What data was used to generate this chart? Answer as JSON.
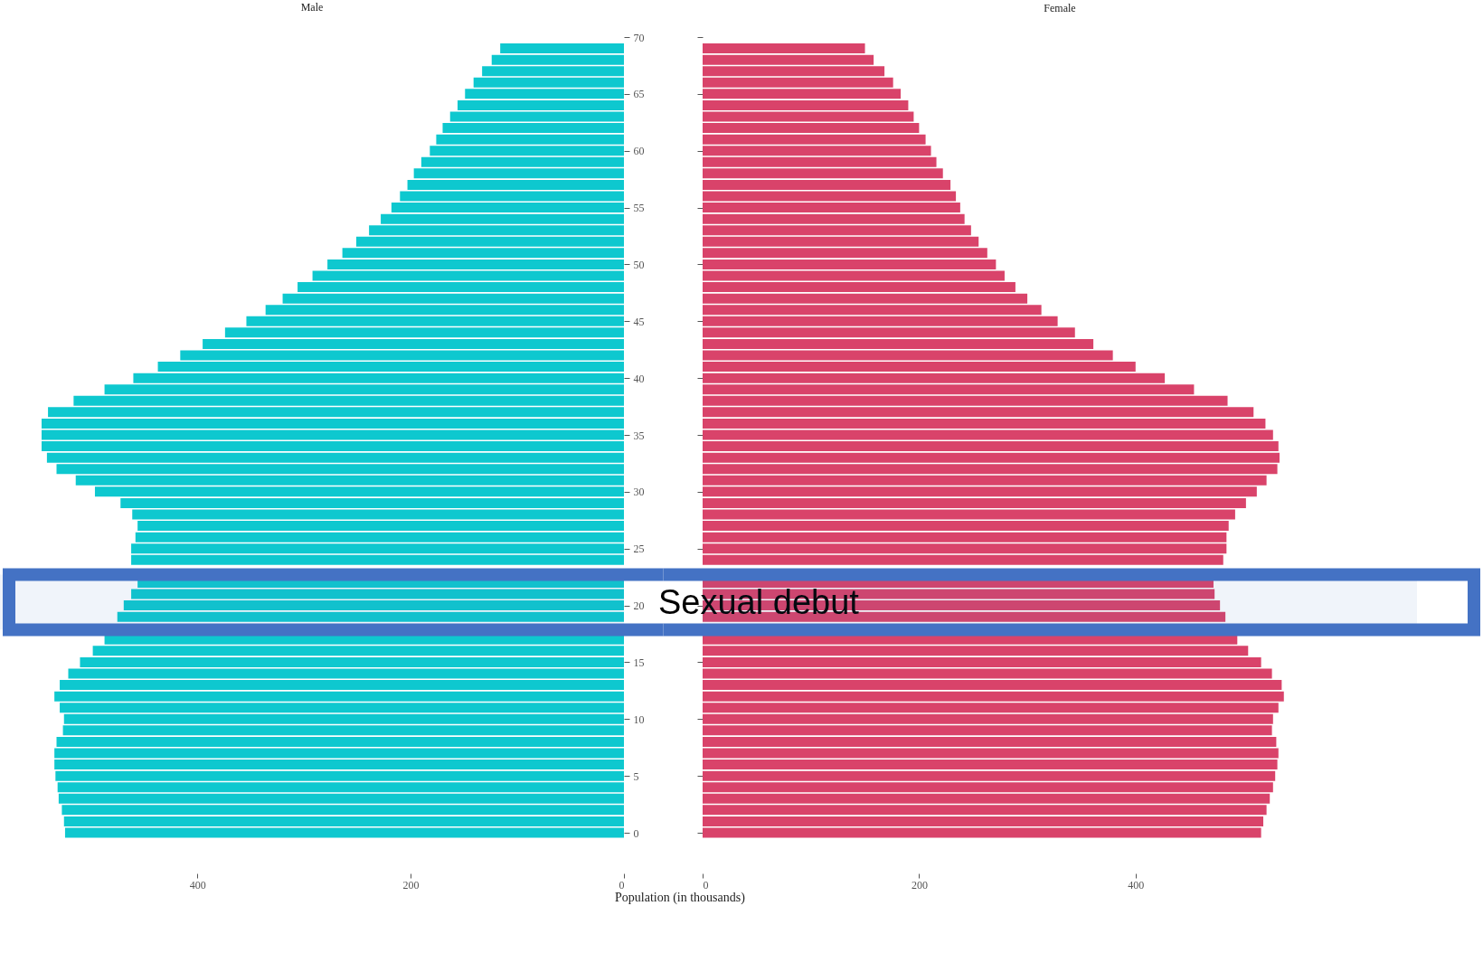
{
  "chart_data": [
    {
      "type": "bar",
      "orientation": "horizontal",
      "title": "Male",
      "xlabel": "Population (in thousands)",
      "x": [
        0,
        1,
        2,
        3,
        4,
        5,
        6,
        7,
        8,
        9,
        10,
        11,
        12,
        13,
        14,
        15,
        16,
        17,
        18,
        19,
        20,
        21,
        22,
        23,
        24,
        25,
        26,
        27,
        28,
        29,
        30,
        31,
        32,
        33,
        34,
        35,
        36,
        37,
        38,
        39,
        40,
        41,
        42,
        43,
        44,
        45,
        46,
        47,
        48,
        49,
        50,
        51,
        52,
        53,
        54,
        55,
        56,
        57,
        58,
        59,
        60,
        61,
        62,
        63,
        64,
        65,
        66,
        67,
        68,
        69
      ],
      "xlim": [
        585,
        0
      ],
      "xticks": [
        400,
        200,
        0
      ],
      "ylim": [
        0,
        70
      ],
      "yticks": [
        0,
        5,
        10,
        15,
        20,
        25,
        30,
        35,
        40,
        45,
        50,
        55,
        60,
        65,
        70
      ],
      "series": [
        {
          "color": "#0ec8cf",
          "values": [
            524,
            525,
            527,
            530,
            531,
            533,
            534,
            534,
            532,
            526,
            525,
            529,
            534,
            529,
            521,
            510,
            498,
            487,
            null,
            475,
            469,
            462,
            456,
            null,
            462,
            462,
            458,
            456,
            461,
            472,
            496,
            514,
            532,
            541,
            546,
            546,
            546,
            540,
            516,
            487,
            460,
            437,
            416,
            395,
            374,
            354,
            336,
            320,
            306,
            292,
            278,
            264,
            251,
            239,
            228,
            218,
            210,
            203,
            197,
            190,
            182,
            176,
            170,
            163,
            156,
            149,
            141,
            133,
            124,
            116
          ]
        }
      ],
      "bands": [
        {
          "axis": "y",
          "from": 17.9,
          "to": 22.7,
          "label": "Sexual debut",
          "color": "#4472c4"
        }
      ]
    },
    {
      "type": "bar",
      "orientation": "horizontal",
      "title": "Female",
      "tick_labels": "x",
      "x": [
        0,
        1,
        2,
        3,
        4,
        5,
        6,
        7,
        8,
        9,
        10,
        11,
        12,
        13,
        14,
        15,
        16,
        17,
        18,
        19,
        20,
        21,
        22,
        23,
        24,
        25,
        26,
        27,
        28,
        29,
        30,
        31,
        32,
        33,
        34,
        35,
        36,
        37,
        38,
        39,
        40,
        41,
        42,
        43,
        44,
        45,
        46,
        47,
        48,
        49,
        50,
        51,
        52,
        53,
        54,
        55,
        56,
        57,
        58,
        59,
        60,
        61,
        62,
        63,
        64,
        65,
        66,
        67,
        68,
        69
      ],
      "xlim": [
        0,
        660
      ],
      "xticks": [
        0,
        200,
        400
      ],
      "ylim": [
        0,
        70
      ],
      "yticks": [
        0,
        5,
        10,
        15,
        20,
        25,
        30,
        35,
        40,
        45,
        50,
        55,
        60,
        65,
        70
      ],
      "bands": [
        {
          "axis": "y",
          "from": 17.9,
          "to": 22.7,
          "color": "#4472c4"
        }
      ],
      "series": [
        {
          "color": "#d9436a",
          "values": [
            516,
            518,
            521,
            524,
            527,
            529,
            531,
            532,
            530,
            526,
            527,
            532,
            537,
            535,
            526,
            516,
            504,
            494,
            null,
            483,
            478,
            473,
            472,
            null,
            481,
            484,
            484,
            486,
            492,
            502,
            512,
            521,
            531,
            533,
            532,
            527,
            520,
            509,
            485,
            454,
            427,
            400,
            379,
            361,
            344,
            328,
            313,
            300,
            289,
            279,
            271,
            263,
            255,
            248,
            242,
            238,
            234,
            229,
            222,
            216,
            211,
            206,
            200,
            195,
            190,
            183,
            176,
            168,
            158,
            150
          ]
        }
      ]
    }
  ]
}
